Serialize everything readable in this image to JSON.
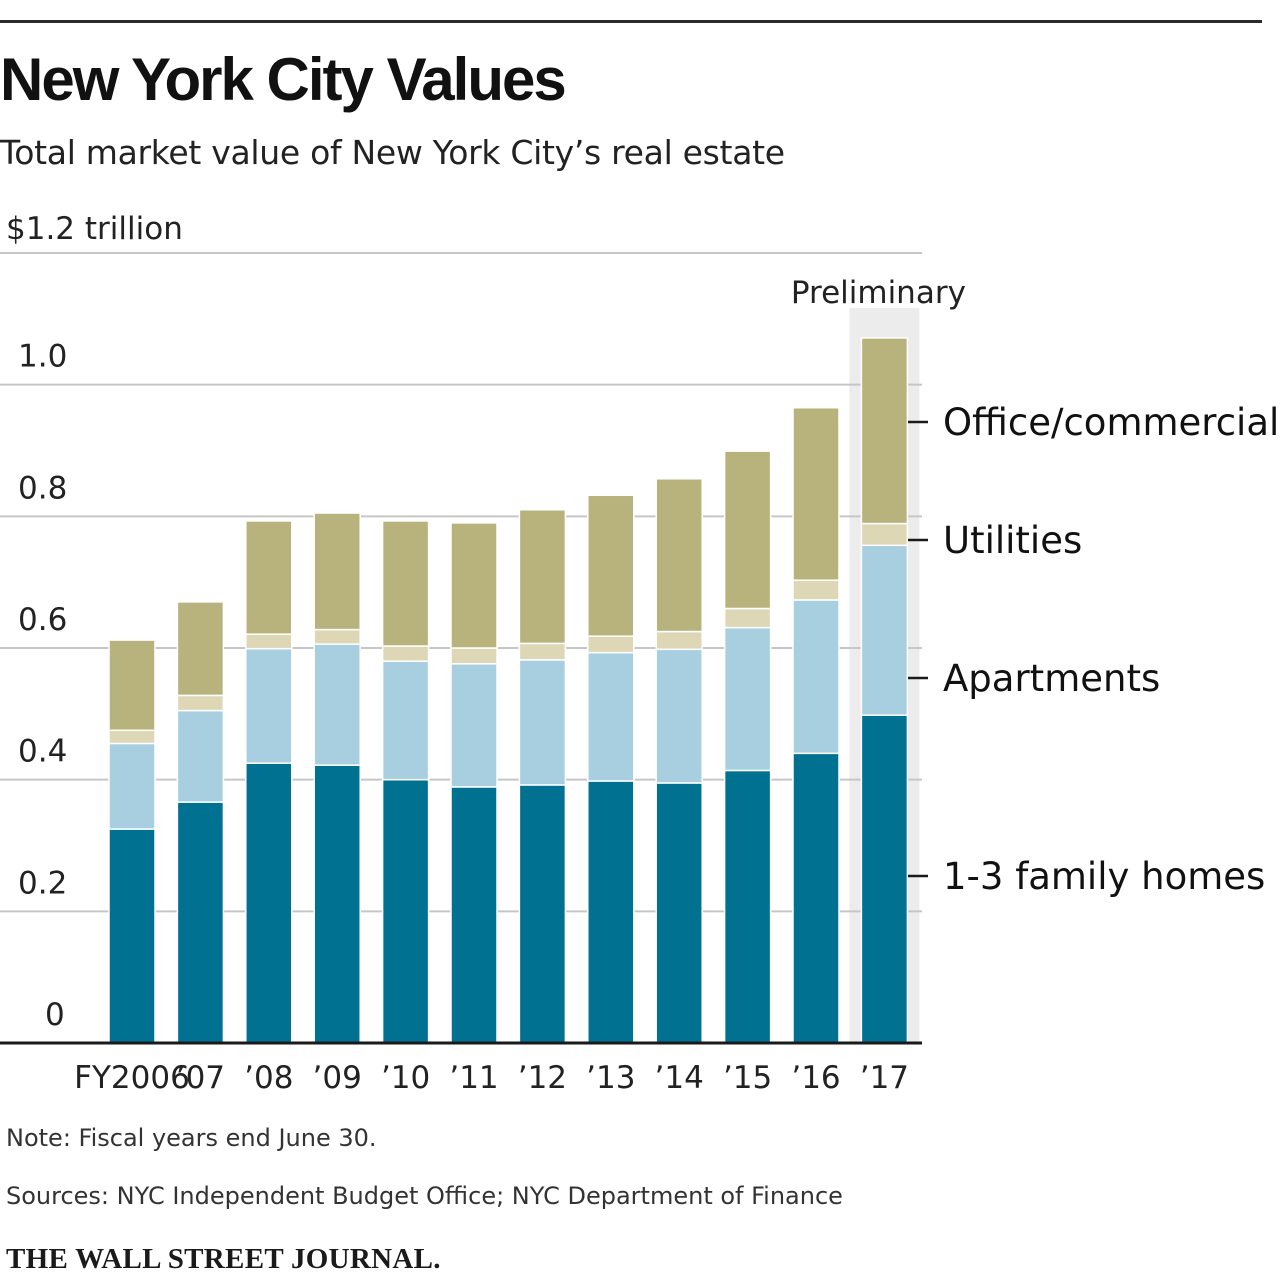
{
  "header": {
    "title": "New York City Values",
    "subtitle": "Total market value of New York City’s real estate"
  },
  "footer": {
    "note": "Note: Fiscal years end June 30.",
    "source": "Sources: NYC Independent Budget Office; NYC Department of Finance",
    "publisher": "THE WALL STREET JOURNAL."
  },
  "chart_data": {
    "type": "bar",
    "stacked": true,
    "title": "New York City Values",
    "subtitle": "Total market value of New York City’s real estate",
    "unit_label": "$1.2 trillion",
    "categories": [
      "FY2006",
      "’07",
      "’08",
      "’09",
      "’10",
      "’11",
      "’12",
      "’13",
      "’14",
      "’15",
      "’16",
      "’17"
    ],
    "ylim": [
      0,
      1.2
    ],
    "yticks": [
      0,
      0.2,
      0.4,
      0.6,
      0.8,
      1.0
    ],
    "ytick_labels": [
      "0",
      "0.2",
      "0.4",
      "0.6",
      "0.8",
      "1.0"
    ],
    "grid": true,
    "highlight": {
      "category_index": 11,
      "label": "Preliminary",
      "color": "#ececec"
    },
    "series": [
      {
        "name": "1-3 family homes",
        "color": "#007191",
        "values": [
          0.325,
          0.366,
          0.425,
          0.422,
          0.4,
          0.389,
          0.392,
          0.398,
          0.395,
          0.414,
          0.44,
          0.498
        ]
      },
      {
        "name": "Apartments",
        "color": "#a7cfe0",
        "values": [
          0.13,
          0.139,
          0.174,
          0.184,
          0.18,
          0.187,
          0.19,
          0.195,
          0.203,
          0.217,
          0.233,
          0.258
        ]
      },
      {
        "name": "Utilities",
        "color": "#ddd7b6",
        "values": [
          0.02,
          0.023,
          0.022,
          0.022,
          0.023,
          0.024,
          0.025,
          0.025,
          0.027,
          0.029,
          0.03,
          0.033
        ]
      },
      {
        "name": "Office/commercial",
        "color": "#b8b27c",
        "values": [
          0.137,
          0.142,
          0.172,
          0.177,
          0.19,
          0.19,
          0.203,
          0.214,
          0.232,
          0.239,
          0.262,
          0.282
        ]
      }
    ],
    "legend_placement": "right"
  }
}
